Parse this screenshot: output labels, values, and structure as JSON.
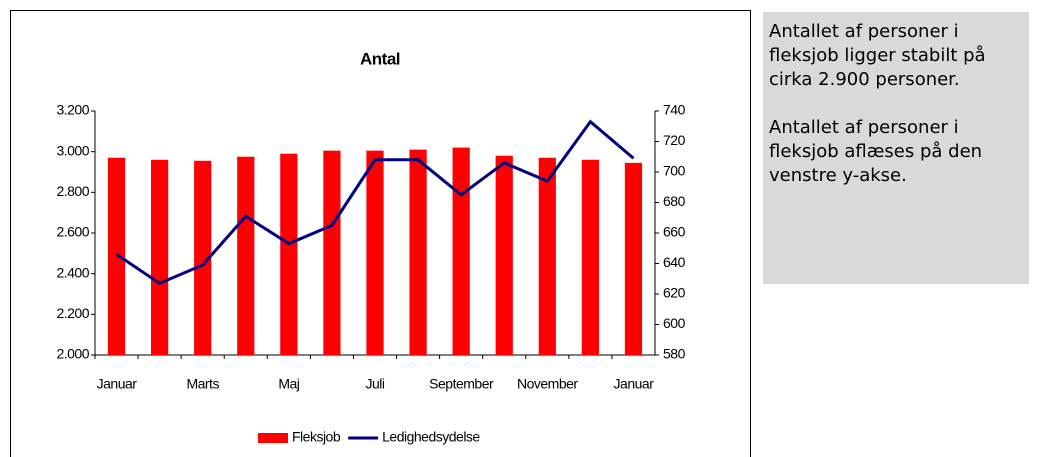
{
  "chart_data": {
    "type": "bar-line",
    "title": "Antal",
    "categories": [
      "Januar",
      null,
      "Marts",
      null,
      "Maj",
      null,
      "Juli",
      null,
      "September",
      null,
      "November",
      null,
      "Januar"
    ],
    "series": [
      {
        "name": "Fleksjob",
        "type": "bar",
        "color": "#ff0000",
        "values": [
          2970,
          2960,
          2955,
          2975,
          2990,
          3005,
          3005,
          3010,
          3020,
          2980,
          2970,
          2960,
          2945
        ]
      },
      {
        "name": "Ledighedsydelse",
        "type": "line",
        "axis": "y2",
        "color": "#000080",
        "values": [
          646,
          627,
          639,
          671,
          653,
          665,
          708,
          708,
          685,
          706,
          694,
          733,
          709
        ]
      }
    ],
    "ylim": [
      2000,
      3200
    ],
    "yticks": [
      {
        "value": 2000,
        "label": "2.000"
      },
      {
        "value": 2200,
        "label": "2.200"
      },
      {
        "value": 2400,
        "label": "2.400"
      },
      {
        "value": 2600,
        "label": "2.600"
      },
      {
        "value": 2800,
        "label": "2.800"
      },
      {
        "value": 3000,
        "label": "3.000"
      },
      {
        "value": 3200,
        "label": "3.200"
      }
    ],
    "y2lim": [
      580,
      740
    ],
    "y2ticks": [
      580,
      600,
      620,
      640,
      660,
      680,
      700,
      720,
      740
    ],
    "grid": false,
    "legend": "bottom"
  },
  "sidebar": {
    "paragraphs": [
      "Antallet af personer i fleksjob ligger stabilt på cirka 2.900 personer.",
      "Antallet af personer i fleksjob aflæses på den venstre y-akse."
    ]
  }
}
